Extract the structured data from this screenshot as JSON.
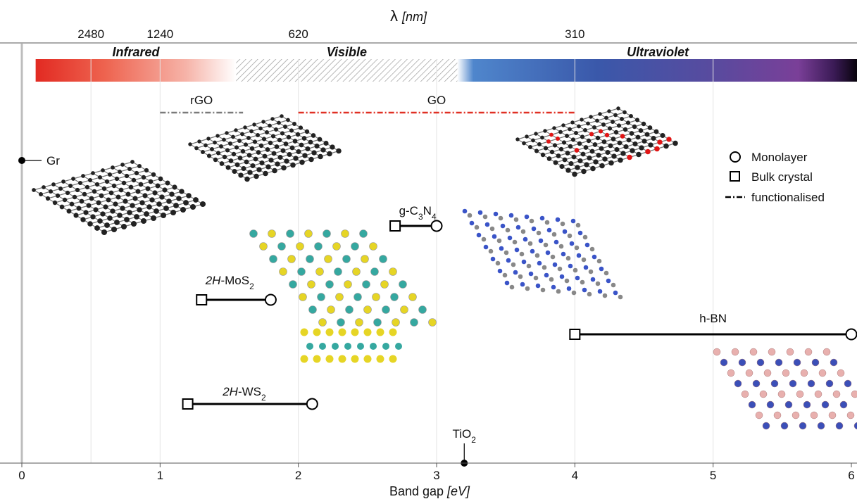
{
  "chart_data": {
    "type": "range",
    "xlabel": "Band gap",
    "xlabel_unit": "[eV]",
    "top_axis_label": "λ",
    "top_axis_unit": "[nm]",
    "xlim": [
      0,
      6
    ],
    "xticks": [
      0,
      1,
      2,
      3,
      4,
      5,
      6
    ],
    "wavelength_ticks": [
      {
        "nm": "2480",
        "ev": 0.5
      },
      {
        "nm": "1240",
        "ev": 1.0
      },
      {
        "nm": "620",
        "ev": 2.0
      },
      {
        "nm": "310",
        "ev": 4.0
      }
    ],
    "regions": [
      {
        "name": "Infrared",
        "from_ev": 0.1,
        "to_ev": 1.55
      },
      {
        "name": "Visible",
        "from_ev": 1.55,
        "to_ev": 3.15
      },
      {
        "name": "Ultraviolet",
        "from_ev": 3.15,
        "to_ev": 6.05
      }
    ],
    "materials": [
      {
        "name": "Gr",
        "kind": "point",
        "value": 0.0
      },
      {
        "name": "rGO",
        "kind": "functionalised",
        "from": 1.0,
        "to": 1.6,
        "color": "#7a7a7a"
      },
      {
        "name": "GO",
        "kind": "functionalised",
        "from": 2.0,
        "to": 4.0,
        "color": "#e03024"
      },
      {
        "name": "g-C3N4",
        "kind": "range",
        "bulk": 2.7,
        "monolayer": 3.0
      },
      {
        "name": "2H-MoS2",
        "kind": "range",
        "bulk": 1.3,
        "monolayer": 1.8
      },
      {
        "name": "h-BN",
        "kind": "range",
        "bulk": 4.0,
        "monolayer": 6.0
      },
      {
        "name": "2H-WS2",
        "kind": "range",
        "bulk": 1.2,
        "monolayer": 2.1
      },
      {
        "name": "TiO2",
        "kind": "point",
        "value": 3.2
      }
    ],
    "legend": {
      "placement": "right",
      "items": [
        {
          "marker": "circle",
          "label": "Monolayer"
        },
        {
          "marker": "square",
          "label": "Bulk crystal"
        },
        {
          "marker": "dashdot",
          "label": "functionalised"
        }
      ]
    }
  }
}
